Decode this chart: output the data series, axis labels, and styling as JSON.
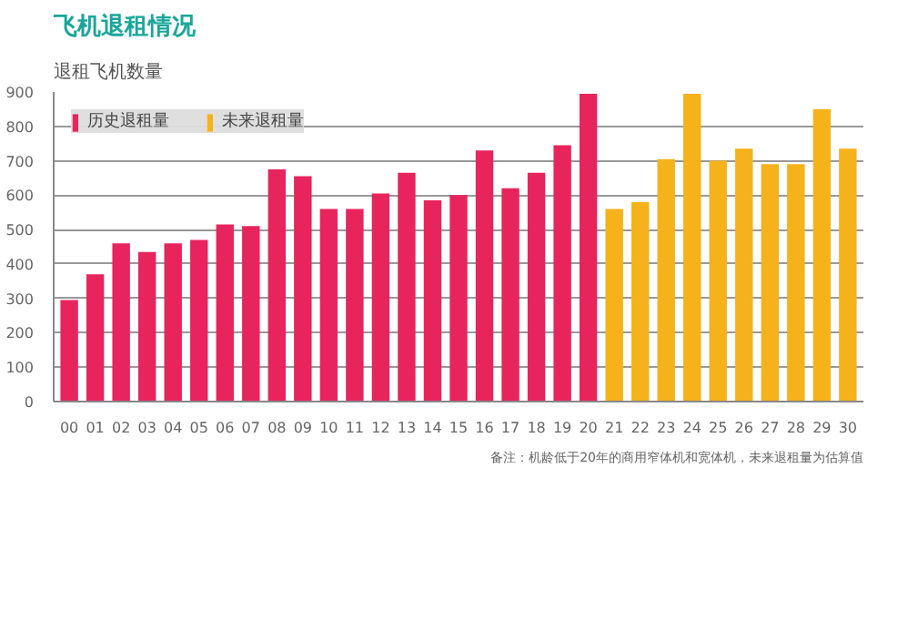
{
  "chart_data": {
    "type": "bar",
    "title": "飞机退租情况",
    "ylabel": "退租飞机数量",
    "categories": [
      "00",
      "01",
      "02",
      "03",
      "04",
      "05",
      "06",
      "07",
      "08",
      "09",
      "10",
      "11",
      "12",
      "13",
      "14",
      "15",
      "16",
      "17",
      "18",
      "19",
      "20",
      "21",
      "22",
      "23",
      "24",
      "25",
      "26",
      "27",
      "28",
      "29",
      "30"
    ],
    "series": [
      {
        "name": "历史退租量",
        "color": "#e8245c",
        "values": [
          295,
          370,
          460,
          435,
          460,
          470,
          515,
          510,
          675,
          655,
          560,
          560,
          605,
          665,
          585,
          600,
          730,
          620,
          665,
          745,
          895,
          null,
          null,
          null,
          null,
          null,
          null,
          null,
          null,
          null,
          null
        ]
      },
      {
        "name": "未来退租量",
        "color": "#f5b21b",
        "values": [
          null,
          null,
          null,
          null,
          null,
          null,
          null,
          null,
          null,
          null,
          null,
          null,
          null,
          null,
          null,
          null,
          null,
          null,
          null,
          null,
          null,
          560,
          580,
          705,
          895,
          700,
          735,
          690,
          690,
          850,
          735
        ]
      }
    ],
    "ylim": [
      0,
      900
    ],
    "yticks": [
      0,
      100,
      200,
      300,
      400,
      500,
      600,
      700,
      800,
      900
    ],
    "grid": "y",
    "legend": "top left",
    "annotations": [
      "备注：机龄低于20年的商用窄体机和宽体机，未来退租量为估算值"
    ]
  }
}
